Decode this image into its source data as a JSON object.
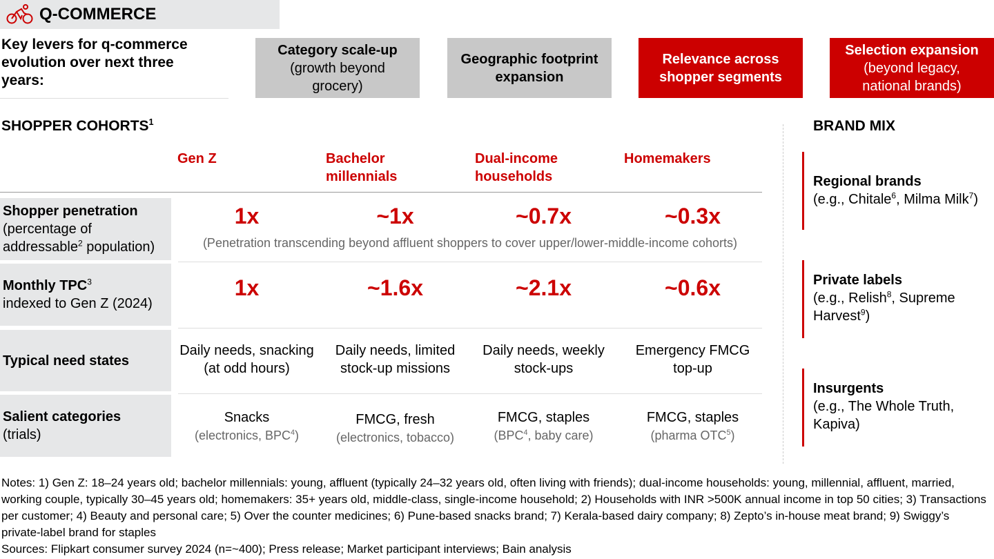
{
  "header": {
    "title": "Q-COMMERCE",
    "icon": "cyclist-icon"
  },
  "levers": {
    "title": "Key levers for q-commerce evolution over next three years:",
    "items": [
      {
        "main": "Category scale-up",
        "sub": "(growth beyond grocery)",
        "style": "gray"
      },
      {
        "main": "Geographic footprint expansion",
        "sub": "",
        "style": "gray"
      },
      {
        "main": "Relevance across shopper segments",
        "sub": "",
        "style": "red"
      },
      {
        "main": "Selection expansion",
        "sub": "(beyond legacy, national brands)",
        "style": "red"
      }
    ]
  },
  "cohorts": {
    "title": "SHOPPER COHORTS",
    "title_sup": "1",
    "columns": [
      "Gen Z",
      "Bachelor millennials",
      "Dual-income households",
      "Homemakers"
    ],
    "rows": [
      {
        "label": "Shopper penetration",
        "label_sub_a": "(percentage of addressable",
        "label_sup": "2",
        "label_sub_b": " population)",
        "values": [
          "1x",
          "~1x",
          "~0.7x",
          "~0.3x"
        ],
        "note": "(Penetration transcending beyond affluent shoppers to cover upper/lower-middle-income cohorts)"
      },
      {
        "label": "Monthly TPC",
        "label_sup": "3",
        "label_sub": "indexed to Gen Z (2024)",
        "values": [
          "1x",
          "~1.6x",
          "~2.1x",
          "~0.6x"
        ]
      },
      {
        "label": "Typical need states",
        "values": [
          "Daily needs, snacking (at odd hours)",
          "Daily needs, limited stock-up missions",
          "Daily needs, weekly stock-ups",
          "Emergency FMCG  top-up"
        ]
      },
      {
        "label": "Salient categories",
        "label_sub": "(trials)",
        "cells": [
          {
            "main": "Snacks",
            "sub_a": "(electronics, BPC",
            "sup": "4",
            "sub_b": ")"
          },
          {
            "main": "FMCG, fresh",
            "sub_a": "(electronics, tobacco)",
            "sup": "",
            "sub_b": ""
          },
          {
            "main": "FMCG, staples",
            "sub_a": "(BPC",
            "sup": "4",
            "sub_b": ", baby care)"
          },
          {
            "main": "FMCG, staples",
            "sub_a": "(pharma OTC",
            "sup": "5",
            "sub_b": ")"
          }
        ]
      }
    ]
  },
  "brand_mix": {
    "title": "BRAND MIX",
    "items": [
      {
        "name": "Regional brands",
        "desc_a": "(e.g., Chitale",
        "sup1": "6",
        "desc_b": ", Milma Milk",
        "sup2": "7",
        "desc_c": ")"
      },
      {
        "name": "Private labels",
        "desc_a": "(e.g., Relish",
        "sup1": "8",
        "desc_b": ", Supreme Harvest",
        "sup2": "9",
        "desc_c": ")"
      },
      {
        "name": "Insurgents",
        "desc_a": "(e.g., The Whole Truth, Kapiva)",
        "sup1": "",
        "desc_b": "",
        "sup2": "",
        "desc_c": ""
      }
    ]
  },
  "notes": "Notes: 1) Gen Z: 18–24 years old; bachelor millennials: young, affluent (typically 24–32 years old, often living with friends); dual-income households: young, millennial, affluent, married, working couple, typically 30–45 years old; homemakers: 35+ years old, middle-class, single-income household; 2) Households with INR >500K annual income in top 50 cities; 3) Transactions per customer; 4) Beauty and personal care; 5) Over the counter medicines; 6) Pune-based snacks brand; 7) Kerala-based dairy company; 8) Zepto’s in-house meat brand; 9) Swiggy’s private-label brand for staples",
  "sources": "Sources: Flipkart consumer survey 2024 (n=~400); Press release; Market participant interviews; Bain analysis",
  "colors": {
    "accent": "#cc0000",
    "gray_box": "#c8c8c8",
    "label_bg": "#e6e7e8"
  }
}
